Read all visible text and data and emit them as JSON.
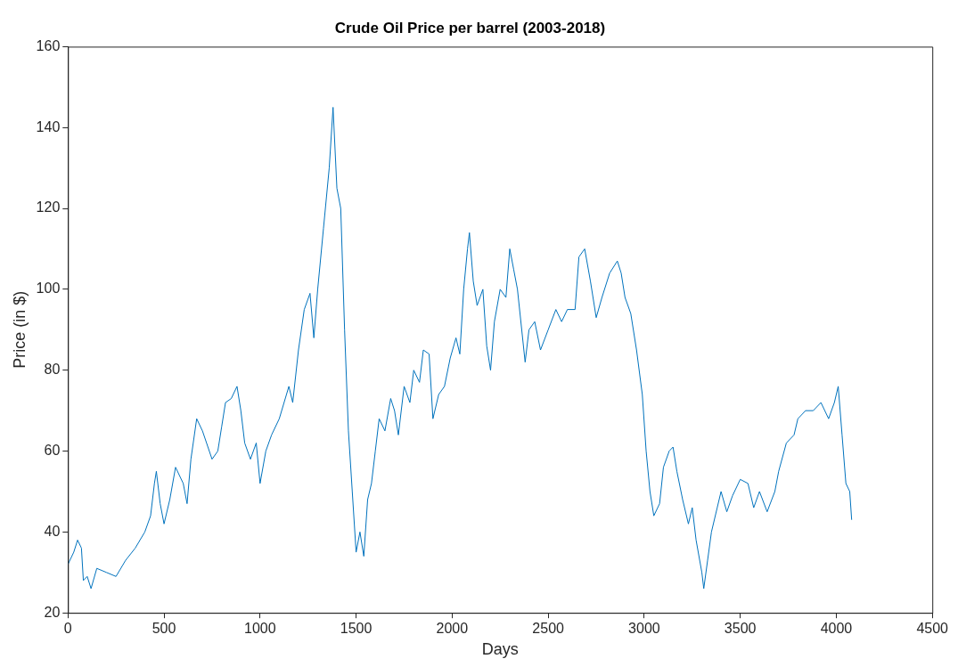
{
  "chart_data": {
    "type": "line",
    "title": "Crude Oil Price per barrel (2003-2018)",
    "xlabel": "Days",
    "ylabel": "Price (in $)",
    "xlim": [
      0,
      4500
    ],
    "xticks": [
      0,
      500,
      1000,
      1500,
      2000,
      2500,
      3000,
      3500,
      4000,
      4500
    ],
    "ylim": [
      20,
      160
    ],
    "yticks": [
      20,
      40,
      60,
      80,
      100,
      120,
      140,
      160
    ],
    "grid": false,
    "legend": false,
    "marker": "none",
    "line_style": "solid",
    "series": [
      {
        "color": "#0072bd",
        "x": [
          0,
          30,
          50,
          70,
          80,
          100,
          120,
          150,
          200,
          250,
          300,
          350,
          400,
          430,
          450,
          460,
          480,
          500,
          530,
          560,
          600,
          620,
          640,
          670,
          700,
          750,
          780,
          800,
          820,
          850,
          880,
          900,
          920,
          950,
          980,
          1000,
          1030,
          1060,
          1100,
          1150,
          1170,
          1200,
          1230,
          1260,
          1280,
          1300,
          1330,
          1360,
          1380,
          1400,
          1420,
          1440,
          1460,
          1480,
          1500,
          1520,
          1540,
          1560,
          1580,
          1600,
          1620,
          1650,
          1680,
          1700,
          1720,
          1750,
          1780,
          1800,
          1830,
          1850,
          1880,
          1900,
          1930,
          1960,
          1990,
          2020,
          2040,
          2060,
          2080,
          2090,
          2110,
          2130,
          2160,
          2180,
          2200,
          2220,
          2250,
          2280,
          2300,
          2320,
          2340,
          2380,
          2400,
          2430,
          2460,
          2500,
          2540,
          2570,
          2600,
          2640,
          2660,
          2690,
          2720,
          2750,
          2780,
          2820,
          2860,
          2880,
          2900,
          2930,
          2960,
          2990,
          3010,
          3030,
          3050,
          3080,
          3100,
          3130,
          3150,
          3170,
          3200,
          3230,
          3250,
          3270,
          3300,
          3310,
          3330,
          3350,
          3380,
          3400,
          3430,
          3460,
          3500,
          3540,
          3570,
          3600,
          3640,
          3680,
          3700,
          3740,
          3780,
          3800,
          3840,
          3880,
          3920,
          3960,
          3990,
          4010,
          4030,
          4050,
          4070,
          4080
        ],
        "values": [
          32,
          35,
          38,
          36,
          28,
          29,
          26,
          31,
          30,
          29,
          33,
          36,
          40,
          44,
          52,
          55,
          47,
          42,
          48,
          56,
          52,
          47,
          58,
          68,
          65,
          58,
          60,
          66,
          72,
          73,
          76,
          70,
          62,
          58,
          62,
          52,
          60,
          64,
          68,
          76,
          72,
          85,
          95,
          99,
          88,
          100,
          115,
          130,
          145,
          125,
          120,
          90,
          65,
          50,
          35,
          40,
          34,
          48,
          52,
          60,
          68,
          65,
          73,
          70,
          64,
          76,
          72,
          80,
          77,
          85,
          84,
          68,
          74,
          76,
          83,
          88,
          84,
          100,
          110,
          114,
          102,
          96,
          100,
          86,
          80,
          92,
          100,
          98,
          110,
          105,
          100,
          82,
          90,
          92,
          85,
          90,
          95,
          92,
          95,
          95,
          108,
          110,
          102,
          93,
          98,
          104,
          107,
          104,
          98,
          94,
          85,
          74,
          60,
          50,
          44,
          47,
          56,
          60,
          61,
          55,
          48,
          42,
          46,
          38,
          30,
          26,
          33,
          40,
          46,
          50,
          45,
          49,
          53,
          52,
          46,
          50,
          45,
          50,
          55,
          62,
          64,
          68,
          70,
          70,
          72,
          68,
          72,
          76,
          64,
          52,
          50,
          43
        ]
      }
    ]
  }
}
